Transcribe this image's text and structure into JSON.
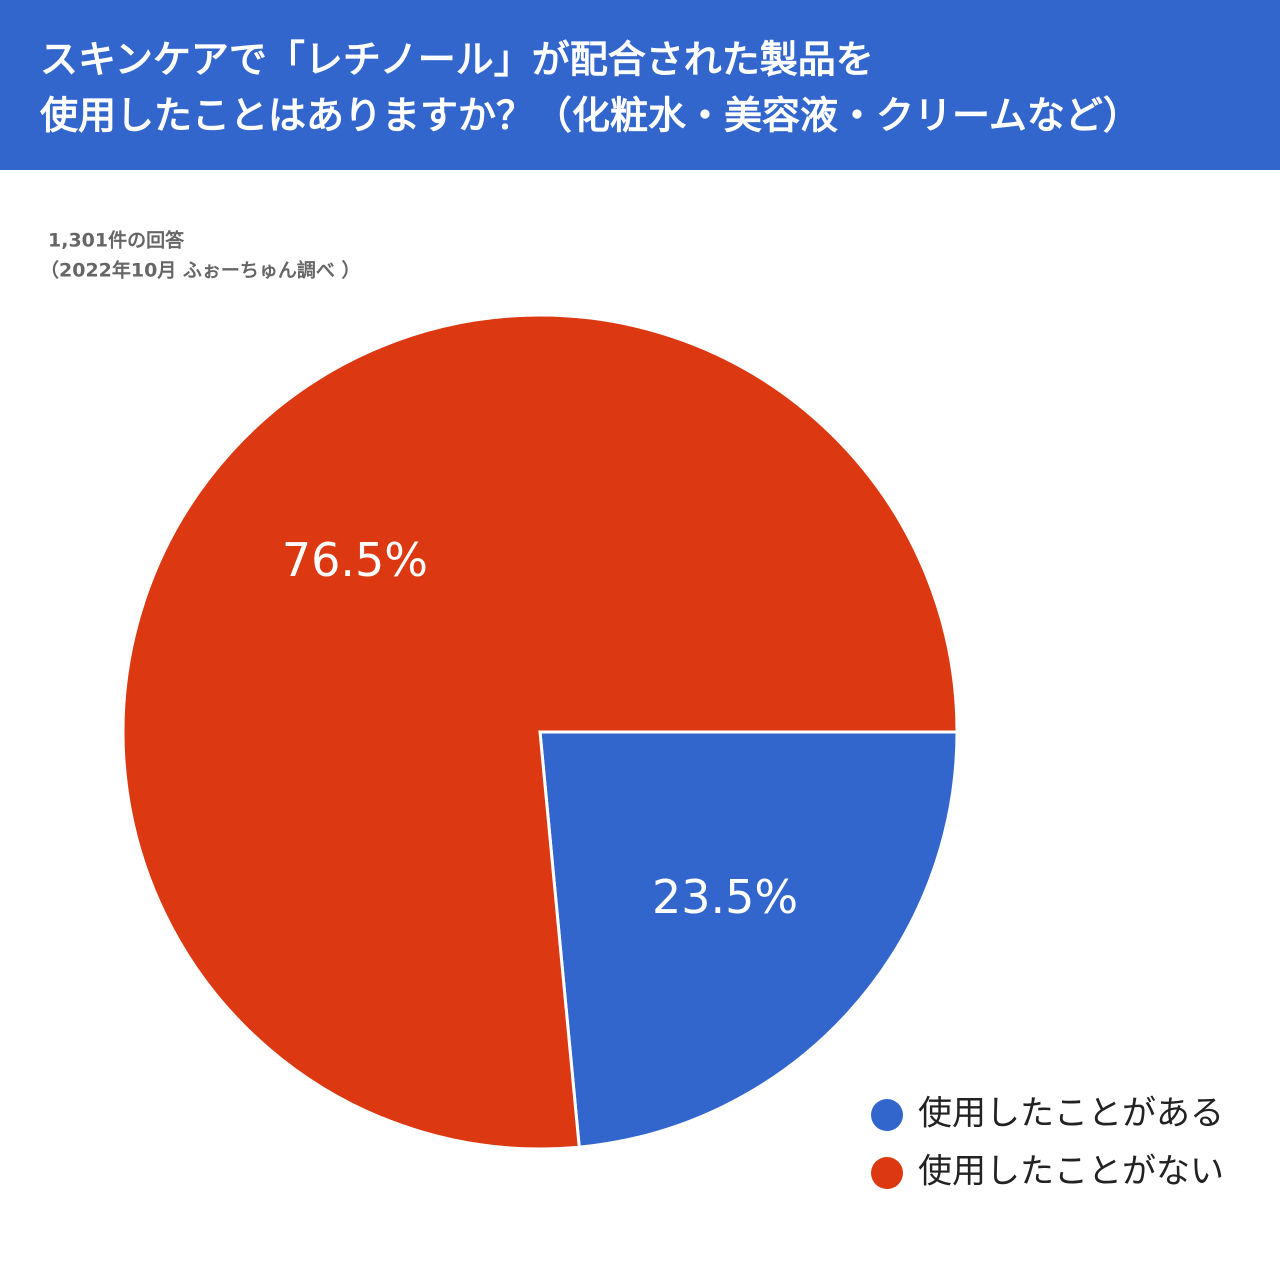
{
  "chart_data": {
    "type": "pie",
    "title": [
      "スキンケアで「レチノール」が配合された製品を",
      "使用したことはありますか？（化粧水・美容液・クリームなど）"
    ],
    "subtitle": [
      "1,301件の回答",
      "（2022年10月 ふぉーちゅん調べ ）"
    ],
    "categories": [
      "使用したことがある",
      "使用したことがない"
    ],
    "values": [
      23.5,
      76.5
    ],
    "value_labels": [
      "23.5%",
      "76.5%"
    ],
    "colors": [
      "#3366cc",
      "#dc3912"
    ],
    "legend": "bottom-right"
  }
}
